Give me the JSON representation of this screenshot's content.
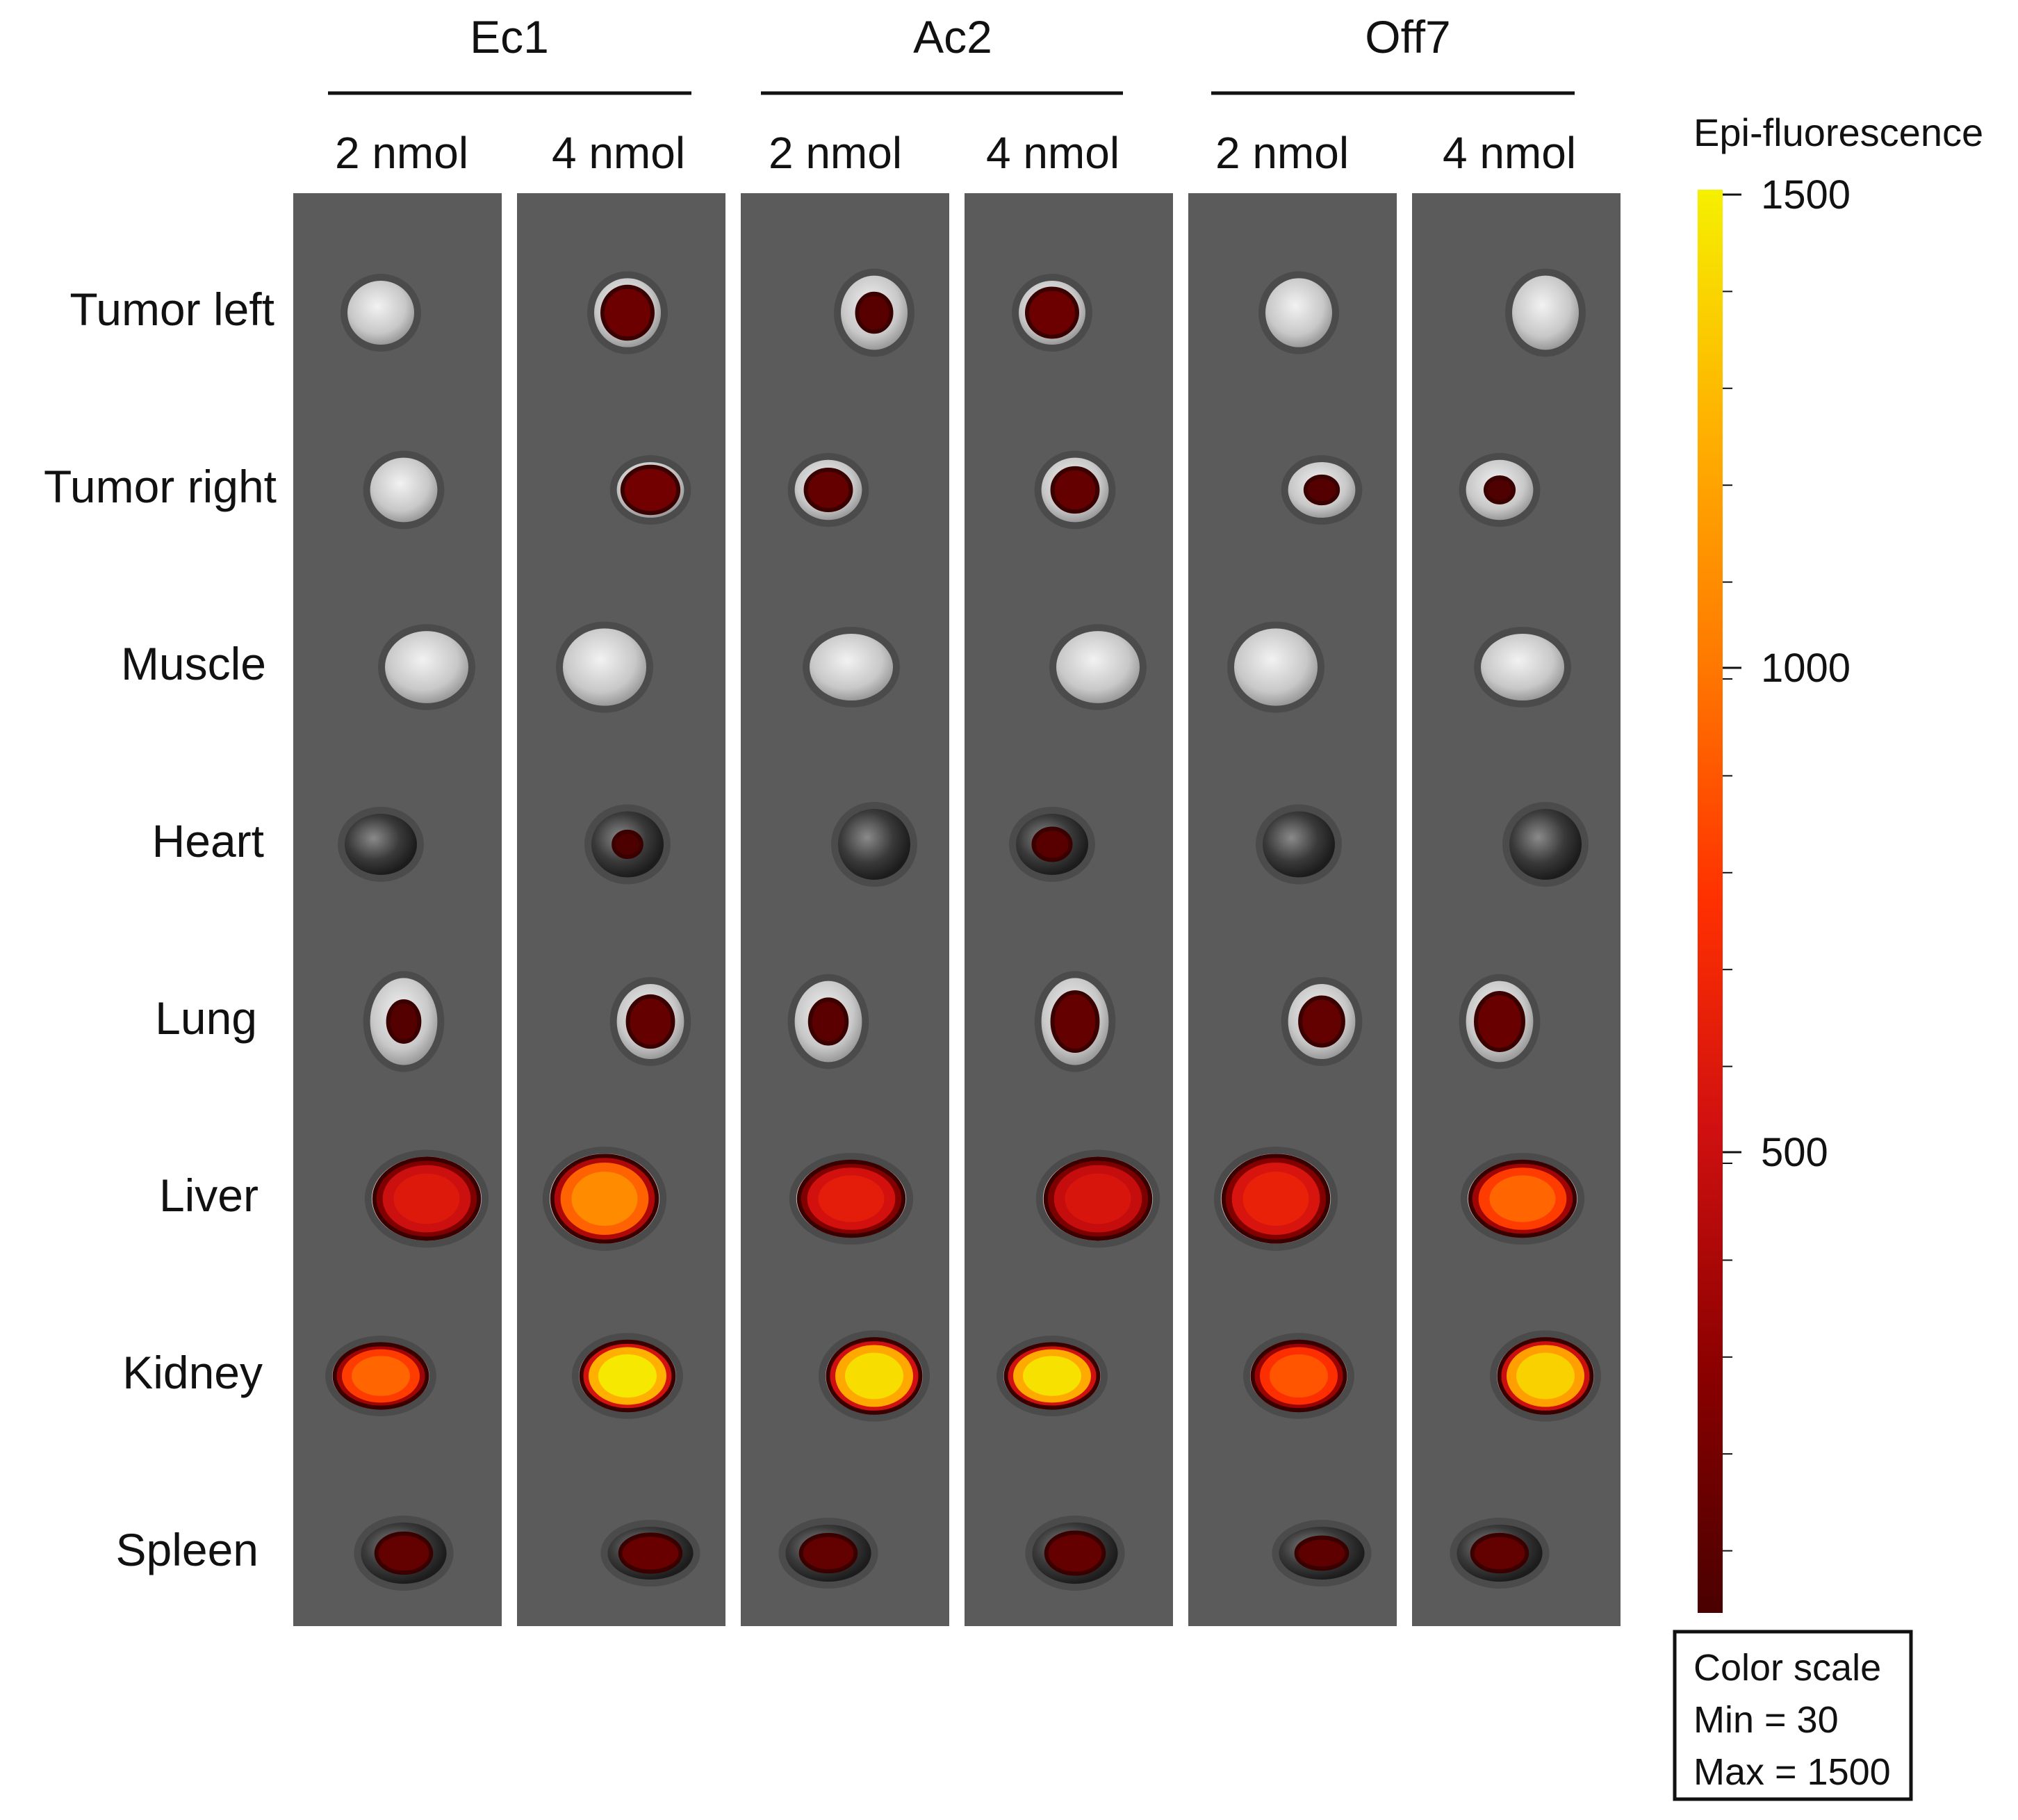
{
  "groups": [
    {
      "name": "Ec1",
      "doses": [
        "2 nmol",
        "4 nmol"
      ]
    },
    {
      "name": "Ac2",
      "doses": [
        "2 nmol",
        "4 nmol"
      ]
    },
    {
      "name": "Off7",
      "doses": [
        "2 nmol",
        "4 nmol"
      ]
    }
  ],
  "organs": [
    "Tumor left",
    "Tumor right",
    "Muscle",
    "Heart",
    "Lung",
    "Liver",
    "Kidney",
    "Spleen"
  ],
  "colorbar": {
    "title": "Epi-fluorescence",
    "ticks": [
      {
        "label": "1500",
        "value": 1500
      },
      {
        "label": "1000",
        "value": 1000
      },
      {
        "label": "500",
        "value": 500
      }
    ],
    "min": 30,
    "max": 1500,
    "colors": [
      "#4a0000",
      "#8b0000",
      "#d01010",
      "#ff3000",
      "#ff7a00",
      "#ffb000",
      "#f5f000"
    ]
  },
  "scale_box": {
    "line1": "Color scale",
    "line2": "Min = 30",
    "line3": "Max = 1500"
  },
  "signal": {
    "note_unitless_level_0_to_1": "see cells",
    "cells": [
      [
        0.0,
        0.25,
        0.1,
        0.25,
        0.0,
        0.0
      ],
      [
        0.0,
        0.3,
        0.2,
        0.2,
        0.08,
        0.04
      ],
      [
        0.0,
        0.0,
        0.0,
        0.0,
        0.0,
        0.0
      ],
      [
        0.0,
        0.02,
        0.0,
        0.1,
        0.0,
        0.0
      ],
      [
        0.07,
        0.2,
        0.12,
        0.2,
        0.18,
        0.22
      ],
      [
        0.38,
        0.72,
        0.4,
        0.36,
        0.42,
        0.62
      ],
      [
        0.62,
        0.98,
        0.95,
        0.96,
        0.58,
        0.92
      ],
      [
        0.18,
        0.22,
        0.18,
        0.2,
        0.15,
        0.18
      ]
    ]
  }
}
